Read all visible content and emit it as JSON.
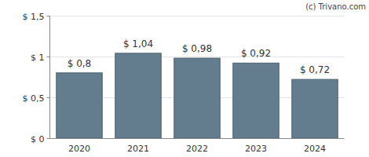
{
  "chart_data": {
    "type": "bar",
    "annotations": [
      "(c) Trivano.com"
    ],
    "categories": [
      "2020",
      "2021",
      "2022",
      "2023",
      "2024"
    ],
    "values": [
      0.8,
      1.04,
      0.98,
      0.92,
      0.72
    ],
    "value_labels": [
      "$ 0,8",
      "$ 1,04",
      "$ 0,98",
      "$ 0,92",
      "$ 0,72"
    ],
    "color": "#647d8e",
    "ylim": [
      0,
      1.5
    ],
    "yticks": [
      {
        "value": 0,
        "label": "$ 0"
      },
      {
        "value": 0.5,
        "label": "$ 0,5"
      },
      {
        "value": 1,
        "label": "$ 1"
      },
      {
        "value": 1.5,
        "label": "$ 1,5"
      }
    ],
    "grid": true,
    "data_labels": true
  }
}
